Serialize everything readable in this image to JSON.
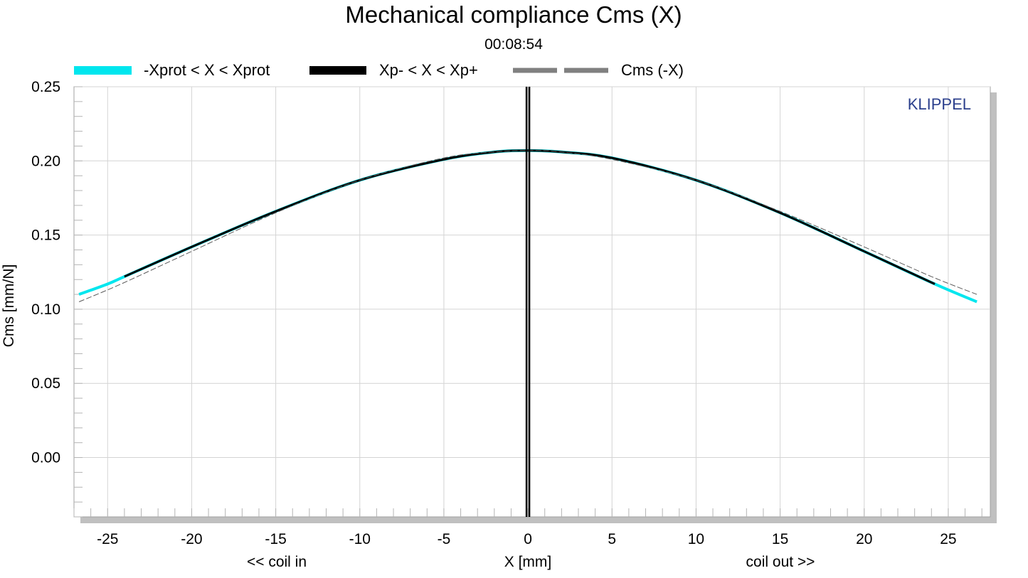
{
  "chart_data": {
    "type": "line",
    "title": "Mechanical compliance Cms (X)",
    "subtitle": "00:08:54",
    "watermark": "KLIPPEL",
    "xlabel": "X [mm]",
    "xlabel_left": "<< coil in",
    "xlabel_right": "coil out >>",
    "ylabel": "Cms [mm/N]",
    "xlim": [
      -27,
      27.5
    ],
    "ylim": [
      -0.04,
      0.25
    ],
    "xticks": [
      -25,
      -20,
      -15,
      -10,
      -5,
      0,
      5,
      10,
      15,
      20,
      25
    ],
    "xtick_labels": [
      "-25",
      "-20",
      "-15",
      "-10",
      "-5",
      "0",
      "5",
      "10",
      "15",
      "20",
      "25"
    ],
    "yticks": [
      0.25,
      0.2,
      0.15,
      0.1,
      0.05,
      0.0
    ],
    "ytick_labels": [
      "0.25",
      "0.20",
      "0.15",
      "0.10",
      "0.05",
      "0.00"
    ],
    "grid": true,
    "legend_placement": "top",
    "vertical_markers": [
      {
        "x": 0.0,
        "color": "#000000"
      }
    ],
    "series": [
      {
        "name": "-Xprot < X < Xprot",
        "color": "#00e6ee",
        "style": "solid",
        "x": [
          -26.7,
          -25,
          -24,
          -20,
          -15,
          -10,
          -5,
          -2,
          0,
          2,
          5,
          10,
          15,
          20,
          24.2,
          26.7
        ],
        "y": [
          0.11,
          0.117,
          0.122,
          0.142,
          0.166,
          0.187,
          0.201,
          0.206,
          0.207,
          0.206,
          0.202,
          0.187,
          0.165,
          0.139,
          0.117,
          0.105
        ]
      },
      {
        "name": "Xp- < X < Xp+",
        "color": "#000000",
        "style": "solid",
        "x": [
          -24,
          -20,
          -15,
          -10,
          -5,
          -2,
          0,
          2,
          5,
          10,
          15,
          20,
          24.2
        ],
        "y": [
          0.122,
          0.142,
          0.166,
          0.187,
          0.201,
          0.206,
          0.207,
          0.206,
          0.202,
          0.187,
          0.165,
          0.139,
          0.117
        ]
      },
      {
        "name": "Cms (-X)",
        "color": "#808080",
        "style": "dashed",
        "x": [
          -26.7,
          -24.2,
          -20,
          -15,
          -10,
          -5,
          -2,
          0,
          2,
          5,
          10,
          15,
          20,
          24,
          26.7
        ],
        "y": [
          0.105,
          0.117,
          0.139,
          0.165,
          0.187,
          0.202,
          0.206,
          0.207,
          0.206,
          0.201,
          0.187,
          0.166,
          0.142,
          0.122,
          0.11
        ]
      }
    ]
  }
}
